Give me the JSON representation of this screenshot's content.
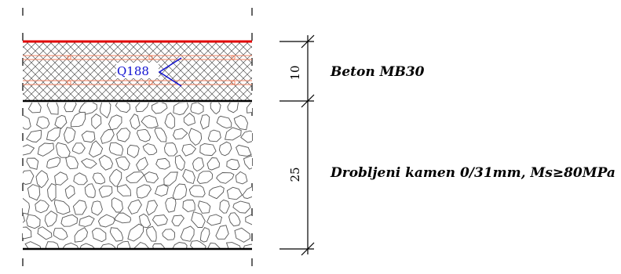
{
  "layers": [
    {
      "thickness": "10",
      "label": "Beton MB30"
    },
    {
      "thickness": "25",
      "label": "Drobljeni kamen 0/31mm, Ms≥80MPa"
    }
  ],
  "reinforcement": {
    "mark": "Q188"
  },
  "colors": {
    "top_edge": "#e00000",
    "rebar_lines": "#f08060",
    "rebar_label": "#1010d0",
    "hatch": "#555555",
    "outline": "#000000"
  }
}
